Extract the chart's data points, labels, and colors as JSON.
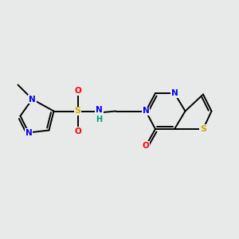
{
  "bg_color": "#e8eaea",
  "bond_color": "#000000",
  "colors": {
    "N": "#0000ee",
    "O": "#ff0000",
    "S_sulfonamide": "#ccaa00",
    "S_thio": "#ccaa00",
    "C": "#000000",
    "H": "#009977"
  }
}
